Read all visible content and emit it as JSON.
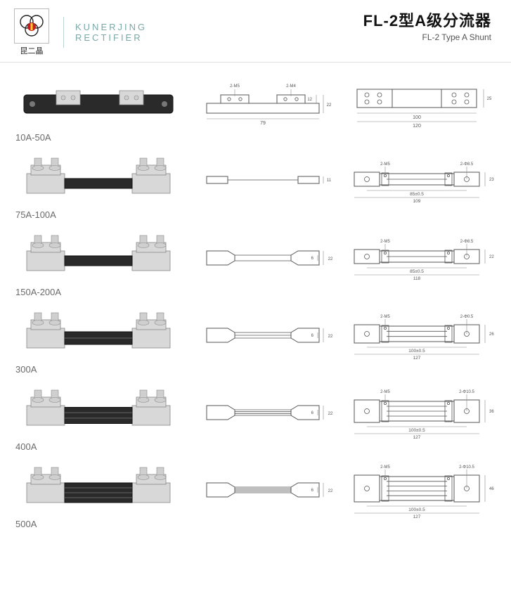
{
  "header": {
    "logo_cn": "昆二晶",
    "brand_line1": "KUNERJING",
    "brand_line2": "RECTIFIER",
    "title_cn": "FL-2型A级分流器",
    "title_en": "FL-2 Type A Shunt"
  },
  "colors": {
    "brand_text": "#7aa8a8",
    "label_text": "#6a6a6a",
    "line": "#555555",
    "metal": "#d8d8d8",
    "dark": "#2a2a2a",
    "logo_red": "#c41e1e"
  },
  "rows": [
    {
      "label": "10A-50A",
      "side": {
        "screw_l": "2-M5",
        "screw_r": "2-M4",
        "h_inner": "12",
        "h_outer": "22",
        "base_w": "79"
      },
      "plan": {
        "screw": "",
        "hole": "",
        "inner_w": "100",
        "outer_w": "120",
        "h": "25",
        "bars": 0,
        "holes_each": 4
      }
    },
    {
      "label": "75A-100A",
      "side": {
        "screw_l": "",
        "screw_r": "",
        "h_inner": "",
        "h_outer": "11",
        "base_w": ""
      },
      "plan": {
        "screw": "2-M5",
        "hole": "2-Φ8.5",
        "inner_w": "85±0.5",
        "outer_w": "109",
        "h": "23",
        "bars": 1,
        "holes_each": 1
      }
    },
    {
      "label": "150A-200A",
      "side": {
        "screw_l": "",
        "screw_r": "",
        "h_inner": "6",
        "h_outer": "22",
        "base_w": ""
      },
      "plan": {
        "screw": "2-M5",
        "hole": "2-Φ8.5",
        "inner_w": "85±0.5",
        "outer_w": "118",
        "h": "22",
        "bars": 1,
        "holes_each": 1
      }
    },
    {
      "label": "300A",
      "side": {
        "screw_l": "",
        "screw_r": "",
        "h_inner": "6",
        "h_outer": "22",
        "base_w": ""
      },
      "plan": {
        "screw": "2-M5",
        "hole": "2-Φ0.5",
        "inner_w": "100±0.5",
        "outer_w": "127",
        "h": "26",
        "bars": 2,
        "holes_each": 1
      }
    },
    {
      "label": "400A",
      "side": {
        "screw_l": "",
        "screw_r": "",
        "h_inner": "6",
        "h_outer": "22",
        "base_w": ""
      },
      "plan": {
        "screw": "2-M5",
        "hole": "2-Φ10.5",
        "inner_w": "100±0.5",
        "outer_w": "127",
        "h": "36",
        "bars": 3,
        "holes_each": 1
      }
    },
    {
      "label": "500A",
      "side": {
        "screw_l": "",
        "screw_r": "",
        "h_inner": "6",
        "h_outer": "22",
        "base_w": ""
      },
      "plan": {
        "screw": "2-M5",
        "hole": "2-Φ10.5",
        "inner_w": "100±0.5",
        "outer_w": "127",
        "h": "46",
        "bars": 4,
        "holes_each": 1
      }
    }
  ]
}
